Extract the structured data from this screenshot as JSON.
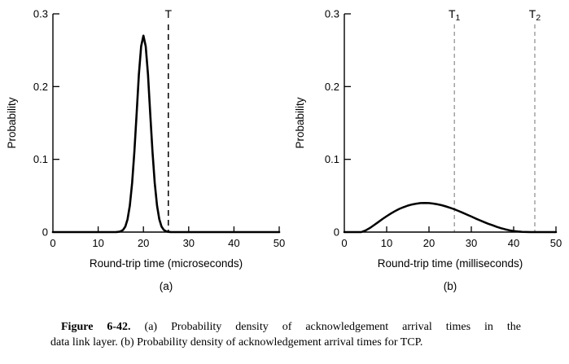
{
  "page": {
    "background": "#ffffff"
  },
  "colors": {
    "background": "#ffffff",
    "axis": "#000000",
    "curve": "#000000",
    "threshold_left": "#000000",
    "threshold_right": "#8a8a8a",
    "text": "#000000"
  },
  "caption": {
    "label": "Figure 6-42.",
    "line1_rest": "(a) Probability density of acknowledgement arrival times in the",
    "line2": "data link layer. (b) Probability density of acknowledgement arrival times for TCP."
  },
  "chart_data": [
    {
      "type": "line",
      "panel": "(a)",
      "title": "",
      "xlabel": "Round-trip time (microseconds)",
      "ylabel": "Probability",
      "xlim": [
        0,
        50
      ],
      "ylim": [
        0,
        0.3
      ],
      "grid": false,
      "legend": null,
      "xticks": [
        0,
        10,
        20,
        30,
        40,
        50
      ],
      "xtick_labels": [
        "0",
        "10",
        "20",
        "30",
        "40",
        "50"
      ],
      "yticks": [
        0,
        0.1,
        0.2,
        0.3
      ],
      "ytick_labels": [
        "0",
        "0.1",
        "0.2",
        "0.3"
      ],
      "series": [
        {
          "name": "ack-arrival-density-data-link-layer",
          "color": "#000000",
          "width": 2.6,
          "points": [
            [
              0,
              0
            ],
            [
              13,
              0
            ],
            [
              14,
              0.0001
            ],
            [
              14.5,
              0.0003
            ],
            [
              15,
              0.0011
            ],
            [
              15.5,
              0.003
            ],
            [
              16,
              0.0077
            ],
            [
              16.5,
              0.0177
            ],
            [
              17,
              0.0365
            ],
            [
              17.5,
              0.0673
            ],
            [
              18,
              0.111
            ],
            [
              18.5,
              0.1638
            ],
            [
              19,
              0.2166
            ],
            [
              19.5,
              0.2554
            ],
            [
              20,
              0.27
            ],
            [
              20.5,
              0.2554
            ],
            [
              21,
              0.2166
            ],
            [
              21.5,
              0.1638
            ],
            [
              22,
              0.111
            ],
            [
              22.5,
              0.0673
            ],
            [
              23,
              0.0365
            ],
            [
              23.5,
              0.0177
            ],
            [
              24,
              0.0077
            ],
            [
              24.5,
              0.003
            ],
            [
              25,
              0.0011
            ],
            [
              25.5,
              0.0003
            ],
            [
              26,
              0.0001
            ],
            [
              27,
              0
            ],
            [
              50,
              0
            ]
          ]
        }
      ],
      "vlines": [
        {
          "base": "T",
          "sub": "",
          "x": 25.5,
          "color": "#000000",
          "dash": "7,5",
          "width": 1.5
        }
      ]
    },
    {
      "type": "line",
      "panel": "(b)",
      "title": "",
      "xlabel": "Round-trip time (milliseconds)",
      "ylabel": "Probability",
      "xlim": [
        0,
        50
      ],
      "ylim": [
        0,
        0.3
      ],
      "grid": false,
      "legend": null,
      "xticks": [
        0,
        10,
        20,
        30,
        40,
        50
      ],
      "xtick_labels": [
        "0",
        "10",
        "20",
        "30",
        "40",
        "50"
      ],
      "yticks": [
        0,
        0.1,
        0.2,
        0.3
      ],
      "ytick_labels": [
        "0",
        "0.1",
        "0.2",
        "0.3"
      ],
      "series": [
        {
          "name": "ack-arrival-density-tcp",
          "color": "#000000",
          "width": 2.5,
          "points": [
            [
              0,
              0
            ],
            [
              4,
              0
            ],
            [
              5,
              0.0021
            ],
            [
              6,
              0.0055
            ],
            [
              7,
              0.0095
            ],
            [
              8,
              0.0137
            ],
            [
              9,
              0.0179
            ],
            [
              10,
              0.0218
            ],
            [
              11,
              0.0255
            ],
            [
              12,
              0.0289
            ],
            [
              13,
              0.0319
            ],
            [
              14,
              0.0343
            ],
            [
              15,
              0.0364
            ],
            [
              16,
              0.038
            ],
            [
              17,
              0.0391
            ],
            [
              18,
              0.0399
            ],
            [
              19,
              0.04
            ],
            [
              20,
              0.0398
            ],
            [
              21,
              0.0392
            ],
            [
              22,
              0.0382
            ],
            [
              23,
              0.0369
            ],
            [
              24,
              0.0353
            ],
            [
              25,
              0.0334
            ],
            [
              26,
              0.0313
            ],
            [
              27,
              0.029
            ],
            [
              28,
              0.0265
            ],
            [
              29,
              0.0239
            ],
            [
              30,
              0.0214
            ],
            [
              31,
              0.0187
            ],
            [
              32,
              0.0162
            ],
            [
              33,
              0.0138
            ],
            [
              34,
              0.0114
            ],
            [
              35,
              0.0094
            ],
            [
              36,
              0.0072
            ],
            [
              37,
              0.0054
            ],
            [
              38,
              0.0038
            ],
            [
              39,
              0.0025
            ],
            [
              40,
              0.0015
            ],
            [
              41,
              0.0008
            ],
            [
              42,
              0.0003
            ],
            [
              43,
              0.0001
            ],
            [
              44,
              0
            ],
            [
              50,
              0
            ]
          ]
        }
      ],
      "vlines": [
        {
          "base": "T",
          "sub": "1",
          "x": 26,
          "color": "#8a8a8a",
          "dash": "5,4",
          "width": 1.2
        },
        {
          "base": "T",
          "sub": "2",
          "x": 45,
          "color": "#8a8a8a",
          "dash": "5,4",
          "width": 1.2
        }
      ]
    }
  ]
}
